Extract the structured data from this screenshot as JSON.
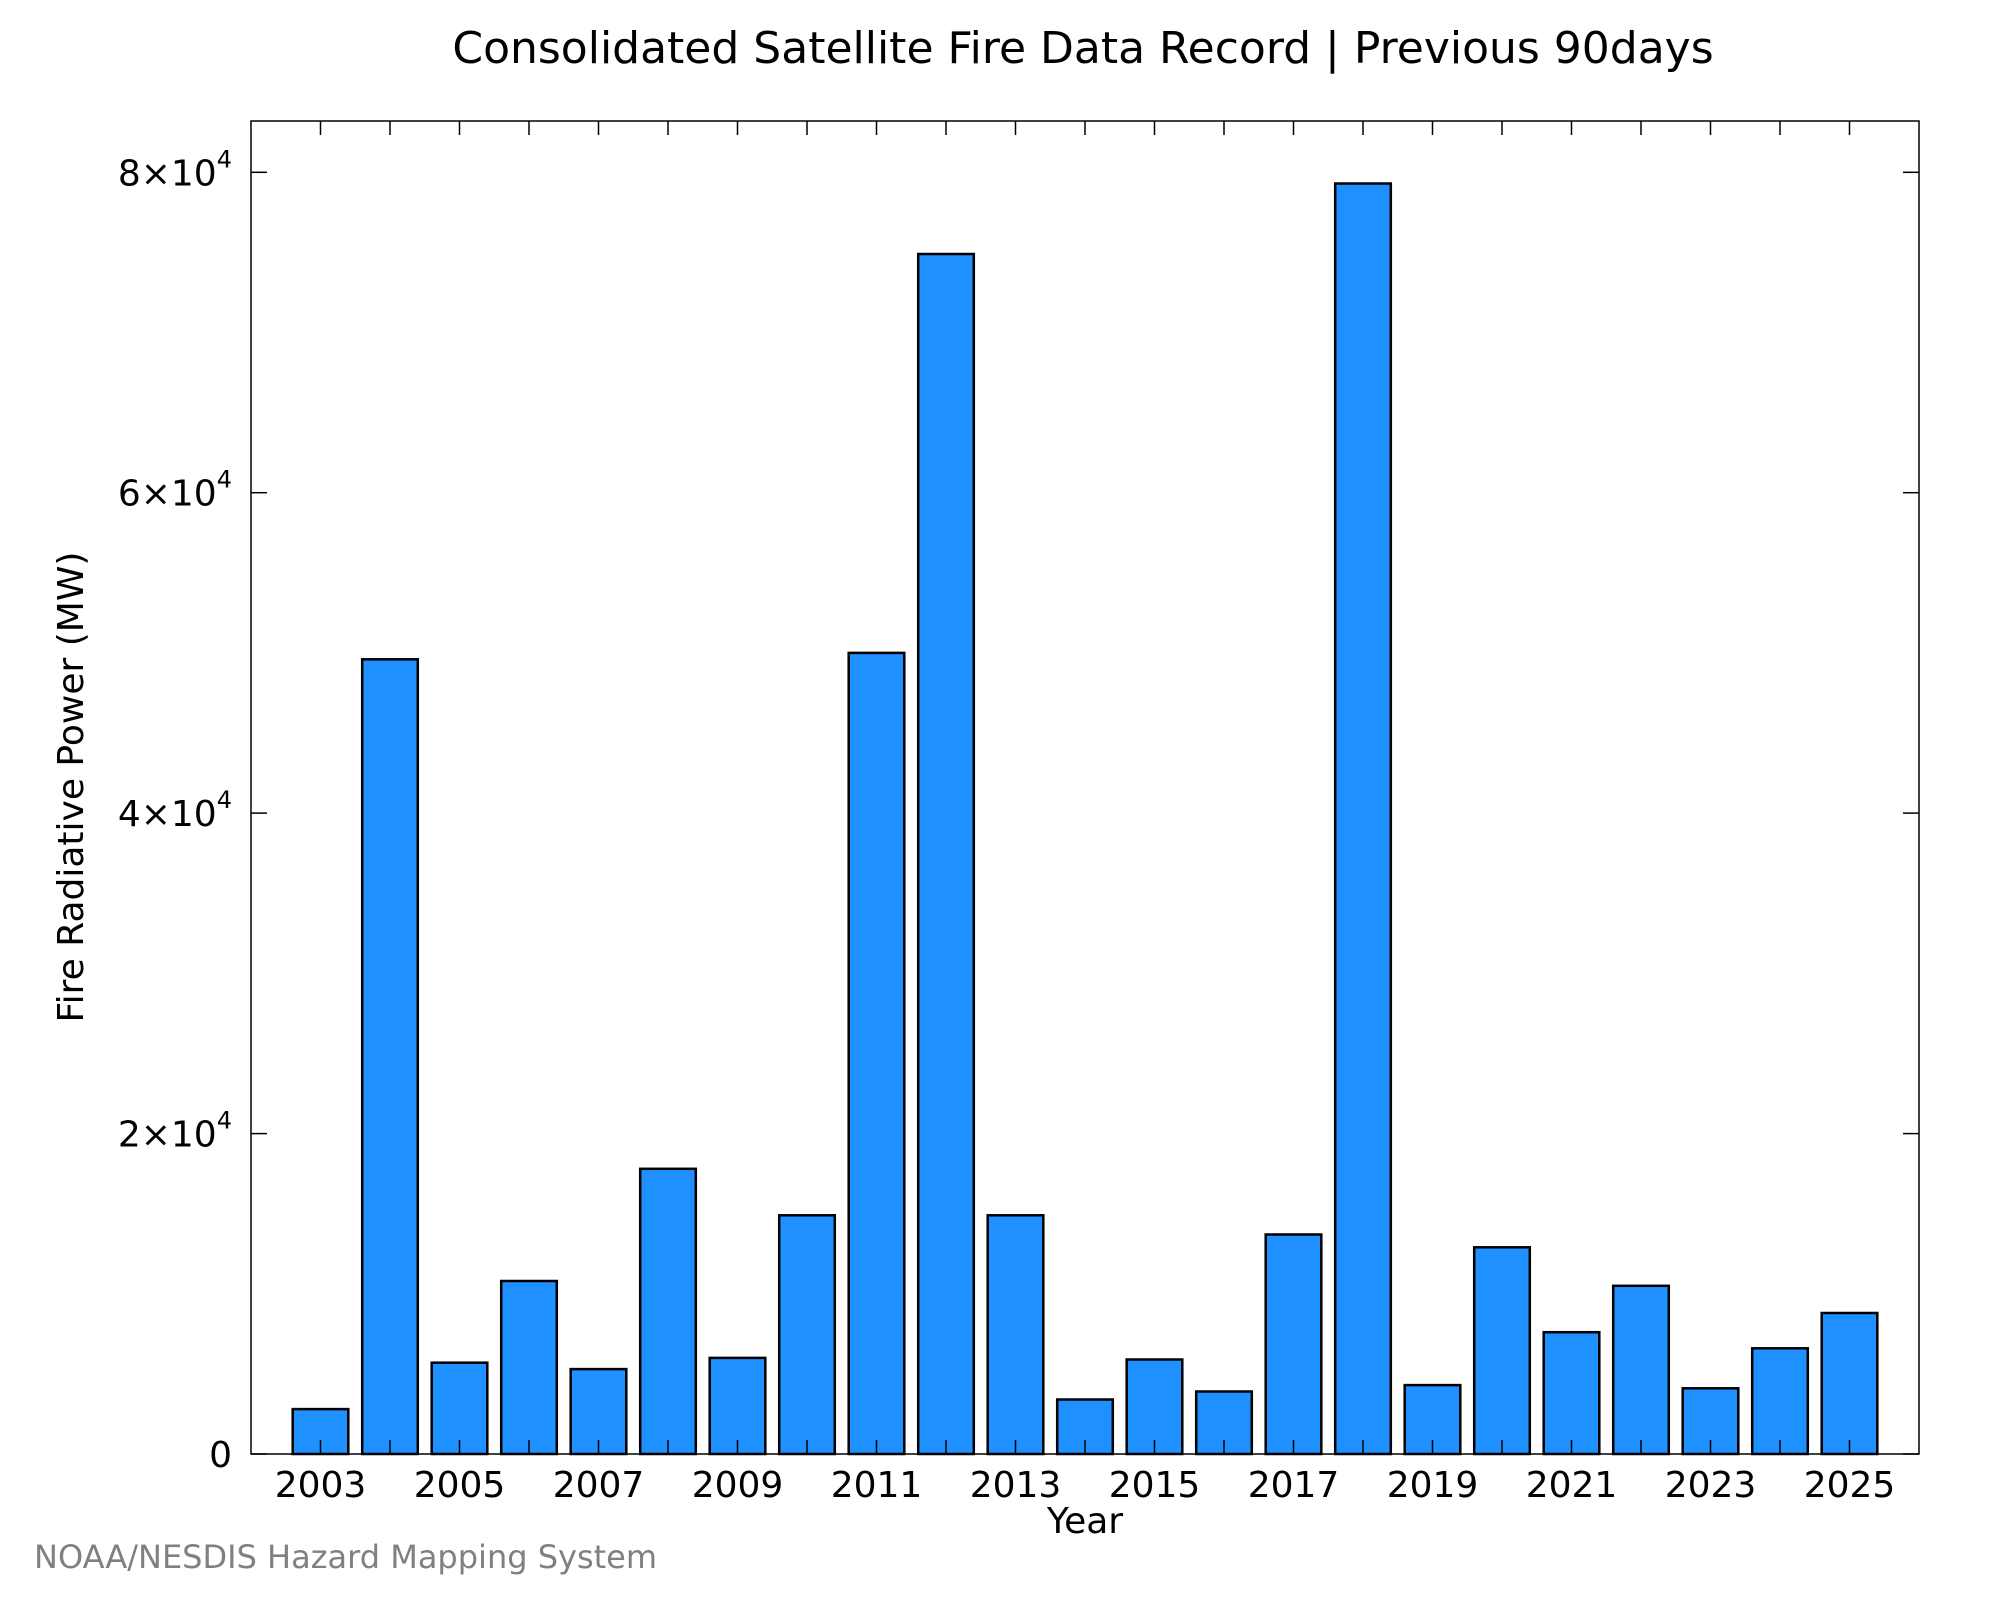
{
  "credit": "NOAA/NESDIS Hazard Mapping System",
  "colors": {
    "bar_fill": "#1e90ff",
    "bar_stroke": "#000000",
    "axis": "#000000",
    "credit": "#808080"
  },
  "chart_data": {
    "type": "bar",
    "title": "Consolidated Satellite Fire Data Record | Previous 90days",
    "xlabel": "Year",
    "ylabel": "Fire Radiative Power (MW)",
    "categories": [
      2003,
      2004,
      2005,
      2006,
      2007,
      2008,
      2009,
      2010,
      2011,
      2012,
      2013,
      2014,
      2015,
      2016,
      2017,
      2018,
      2019,
      2020,
      2021,
      2022,
      2023,
      2024,
      2025
    ],
    "values": [
      2800,
      49600,
      5700,
      10800,
      5300,
      17800,
      6000,
      14900,
      50000,
      74900,
      14900,
      3400,
      5900,
      3900,
      13700,
      79300,
      4300,
      12900,
      7600,
      10500,
      4100,
      6600,
      8800
    ],
    "xticks": [
      "2003",
      "2005",
      "2007",
      "2009",
      "2011",
      "2013",
      "2015",
      "2017",
      "2019",
      "2021",
      "2023",
      "2025"
    ],
    "yticks": [
      {
        "value": 0,
        "mantissa": "0",
        "exponent": ""
      },
      {
        "value": 20000,
        "mantissa": "2×10",
        "exponent": "4"
      },
      {
        "value": 40000,
        "mantissa": "4×10",
        "exponent": "4"
      },
      {
        "value": 60000,
        "mantissa": "6×10",
        "exponent": "4"
      },
      {
        "value": 80000,
        "mantissa": "8×10",
        "exponent": "4"
      }
    ],
    "xlim": [
      2002,
      2026
    ],
    "ylim": [
      0,
      83200
    ],
    "grid": false,
    "legend": "none"
  }
}
